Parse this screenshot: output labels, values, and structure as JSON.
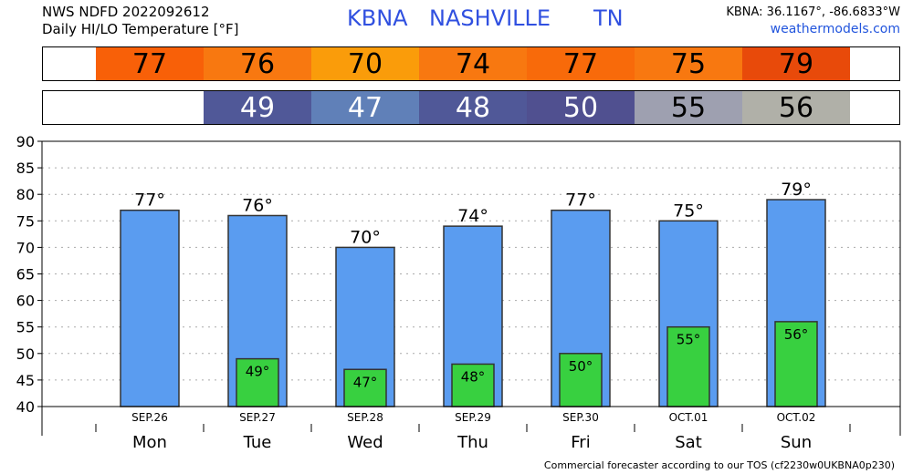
{
  "header": {
    "line1": "NWS NDFD 2022092612",
    "line2": "Daily HI/LO Temperature [°F]",
    "station": "KBNA",
    "city": "NASHVILLE",
    "state": "TN",
    "coords": "KBNA: 36.1167°, -86.6833°W",
    "site": "weathermodels.com"
  },
  "footer": "Commercial forecaster according to our TOS (cf2230w0UKBNA0p230)",
  "colors": {
    "hi_bar": "#5a9cf0",
    "lo_bar": "#38d040",
    "hi_band": [
      "#f86008",
      "#f87810",
      "#fa9c0a",
      "#f87810",
      "#f86a0a",
      "#f87810",
      "#e84a0a"
    ],
    "lo_band": [
      "#505898",
      "#6080b8",
      "#505898",
      "#505090",
      "#9ea0b0",
      "#b0b0a8"
    ]
  },
  "chart_data": {
    "type": "bar",
    "days": [
      "Mon",
      "Tue",
      "Wed",
      "Thu",
      "Fri",
      "Sat",
      "Sun"
    ],
    "dates": [
      "SEP.26",
      "SEP.27",
      "SEP.28",
      "SEP.29",
      "SEP.30",
      "OCT.01",
      "OCT.02"
    ],
    "series": [
      {
        "values": [
          77,
          76,
          70,
          74,
          77,
          75,
          79
        ]
      },
      {
        "values": [
          null,
          49,
          47,
          48,
          50,
          55,
          56
        ]
      }
    ],
    "hi_labels": [
      "77°",
      "76°",
      "70°",
      "74°",
      "77°",
      "75°",
      "79°"
    ],
    "lo_labels": [
      "",
      "49°",
      "47°",
      "48°",
      "50°",
      "55°",
      "56°"
    ],
    "ylim": [
      40,
      90
    ],
    "yticks": [
      40,
      45,
      50,
      55,
      60,
      65,
      70,
      75,
      80,
      85,
      90
    ],
    "grid": true
  }
}
